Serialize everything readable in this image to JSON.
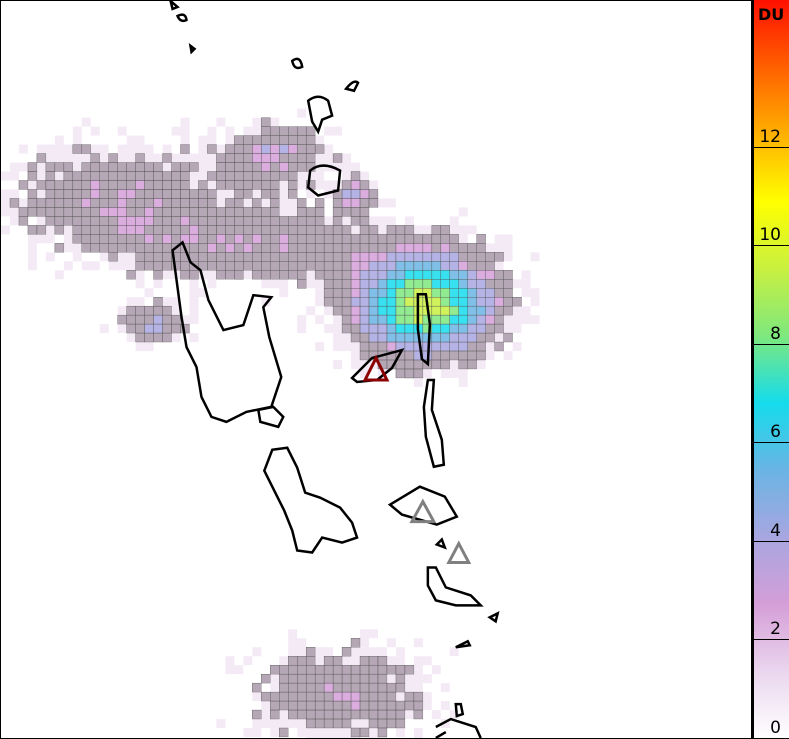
{
  "colorbar": {
    "unit": "DU",
    "ticks": [
      "0",
      "2",
      "4",
      "6",
      "8",
      "10",
      "12"
    ],
    "range": [
      0,
      15
    ],
    "colors": [
      "#ffffff",
      "#ead6ee",
      "#d59ed8",
      "#a8a6e0",
      "#6ab4e4",
      "#14dcec",
      "#7ee87e",
      "#c8f040",
      "#ffff00",
      "#ffb000",
      "#ff6000",
      "#ff1000"
    ]
  },
  "map": {
    "island_outline_color": "#000000",
    "active_volcano_color": "#8b0000",
    "other_volcano_color": "#808080",
    "grid_line_color": "#555555"
  }
}
